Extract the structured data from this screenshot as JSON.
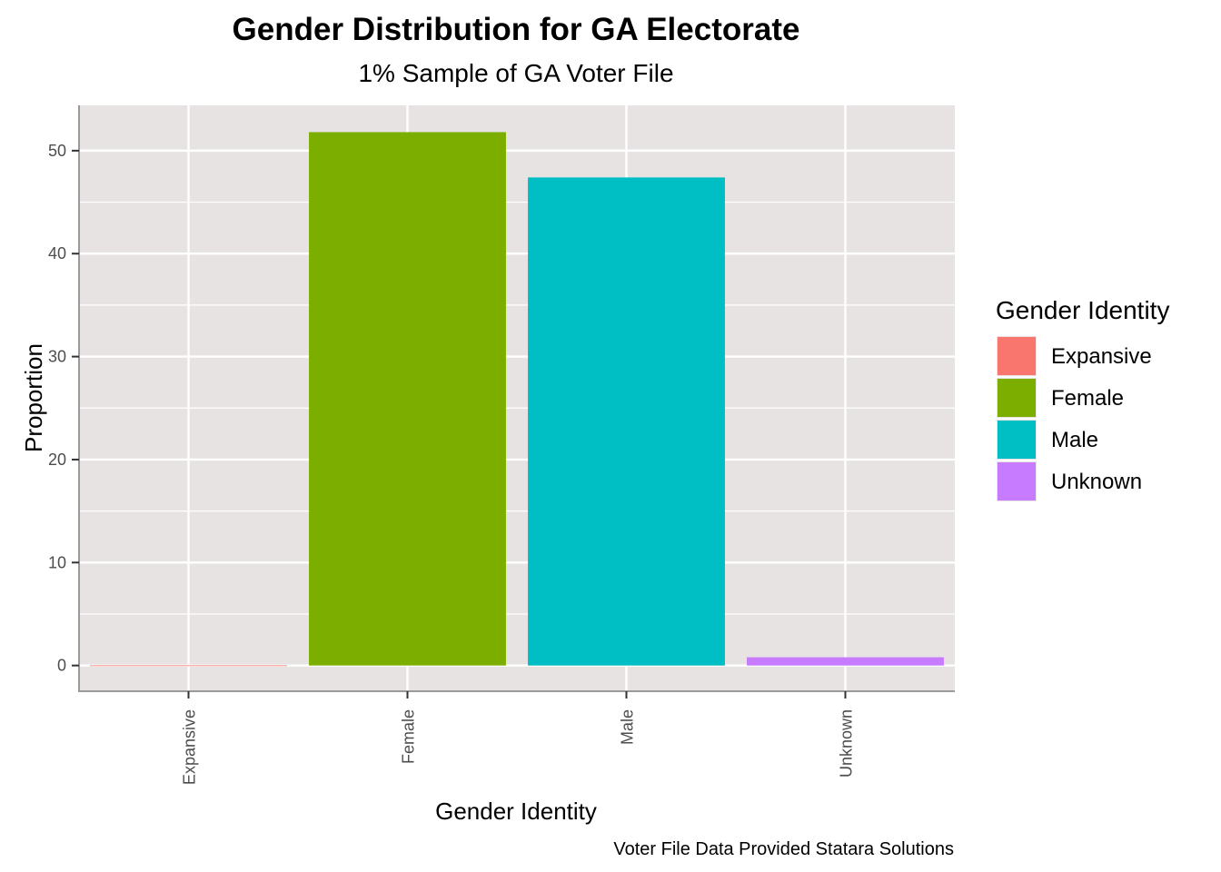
{
  "chart_data": {
    "type": "bar",
    "title": "Gender Distribution for GA Electorate",
    "subtitle": "1% Sample of GA Voter File",
    "xlabel": "Gender Identity",
    "ylabel": "Proportion",
    "caption": "Voter File Data Provided Statara Solutions",
    "categories": [
      "Expansive",
      "Female",
      "Male",
      "Unknown"
    ],
    "values": [
      0.02,
      51.8,
      47.4,
      0.8
    ],
    "colors": [
      "#F8766D",
      "#7CAE00",
      "#00BFC4",
      "#C77CFF"
    ],
    "ylim": [
      -2.5,
      54.4
    ],
    "yticks": [
      0,
      10,
      20,
      30,
      40,
      50
    ],
    "ytick_labels": [
      "0",
      "10",
      "20",
      "30",
      "40",
      "50"
    ],
    "grid": true,
    "panel_background": "#E8E3E3",
    "legend": {
      "title": "Gender Identity",
      "placement": "right",
      "entries": [
        "Expansive",
        "Female",
        "Male",
        "Unknown"
      ]
    }
  }
}
